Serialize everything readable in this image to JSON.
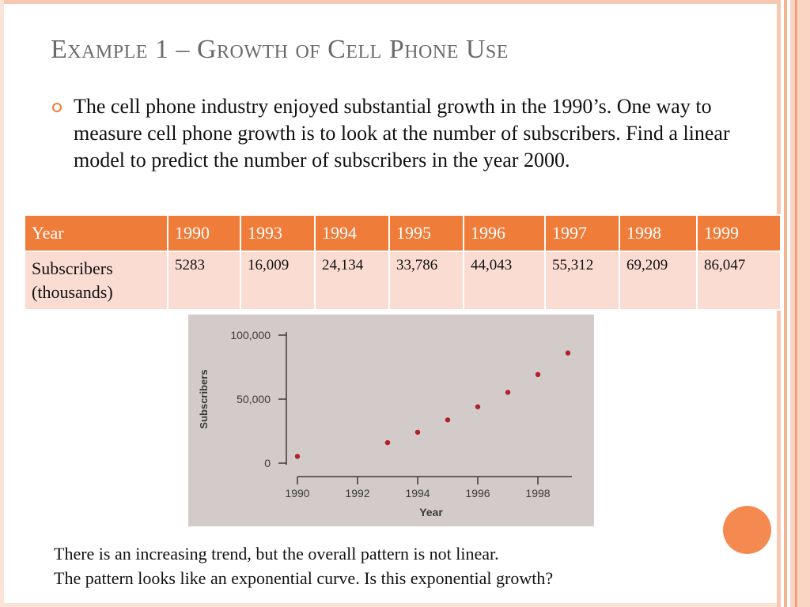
{
  "slide": {
    "title": "Example 1 – Growth of Cell Phone Use",
    "bullet": "The cell phone industry enjoyed substantial growth in the 1990’s.  One way to measure cell phone growth is to look at the number of subscribers. Find a linear model to predict the number of subscribers in the year 2000.",
    "footer_line1": "There is an increasing trend, but the overall pattern is not linear.",
    "footer_line2": "The pattern looks like an exponential curve.  Is this exponential growth?"
  },
  "table": {
    "row1_header": "Year",
    "row2_header_line1": "Subscribers",
    "row2_header_line2": "(thousands)",
    "years": [
      "1990",
      "1993",
      "1994",
      "1995",
      "1996",
      "1997",
      "1998",
      "1999"
    ],
    "subscribers": [
      "5283",
      "16,009",
      "24,134",
      "33,786",
      "44,043",
      "55,312",
      "69,209",
      "86,047"
    ]
  },
  "colors": {
    "accent": "#f07c3a",
    "table_body": "#fbdcd2",
    "title": "#6b6b6b",
    "point": "#b3202a"
  },
  "chart_data": {
    "type": "scatter",
    "xlabel": "Year",
    "ylabel": "Subscribers",
    "x": [
      1990,
      1993,
      1994,
      1995,
      1996,
      1997,
      1998,
      1999
    ],
    "y": [
      5283,
      16009,
      24134,
      33786,
      44043,
      55312,
      69209,
      86047
    ],
    "xlim": [
      1990,
      1999
    ],
    "ylim": [
      0,
      100000
    ],
    "x_ticks": [
      "1990",
      "1992",
      "1994",
      "1996",
      "1998"
    ],
    "y_ticks": [
      "0",
      "50,000",
      "100,000"
    ],
    "grid": false
  }
}
